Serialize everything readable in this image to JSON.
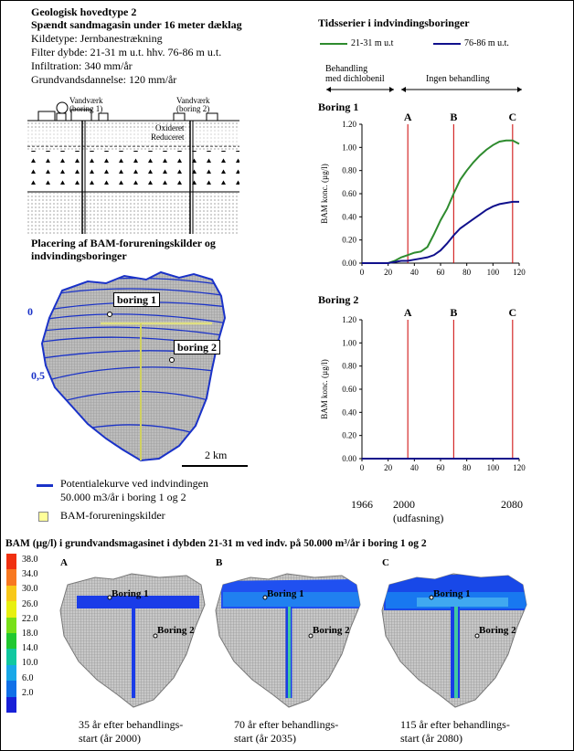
{
  "header": {
    "title_line1": "Geologisk hovedtype 2",
    "title_line2": "Spændt sandmagasin under 16 meter dæklag",
    "kildetype": "Kildetype: Jernbanestrækning",
    "filterdybde": "Filter dybde: 21-31 m u.t. hhv. 76-86 m u.t.",
    "infiltration": "Infiltration: 340 mm/år",
    "grundvandsdannelse": "Grundvandsdannelse: 120 mm/år"
  },
  "section_diagram": {
    "vandvaerk1_line1": "Vandværk",
    "vandvaerk1_line2": "(boring 1)",
    "vandvaerk2_line1": "Vandværk",
    "vandvaerk2_line2": "(boring 2)",
    "oxideret": "Oxideret",
    "reduceret": "Reduceret"
  },
  "map": {
    "title_line1": "Placering af BAM-forureningskilder og",
    "title_line2": "indvindingsboringer",
    "boring1": "boring 1",
    "boring2": "boring 2",
    "contour_0": "0",
    "contour_05": "0,5",
    "scale": "2 km",
    "legend_curve_line1": "Potentialekurve ved indvindingen",
    "legend_curve_line2": "50.000 m3/år i boring 1 og 2",
    "legend_source": "BAM-forureningskilder"
  },
  "timeseries": {
    "title": "Tidsserier i indvindingsboringer",
    "legend_green": "21-31 m u.t",
    "legend_blue": "76-86 m u.t.",
    "phase1_line1": "Behandling",
    "phase1_line2": "med dichlobenil",
    "phase2": "Ingen behandling",
    "timeline_1966": "1966",
    "timeline_2000": "2000",
    "timeline_2080": "2080",
    "timeline_note": "(udfasning)",
    "colors": {
      "green": "#2e8b2e",
      "blue": "#10108c",
      "marker": "#cc0000"
    }
  },
  "chart_data": [
    {
      "type": "line",
      "title": "Boring 1",
      "xlabel": "",
      "ylabel": "BAM konc. (µg/l)",
      "xlim": [
        0,
        120
      ],
      "ylim": [
        0,
        1.2
      ],
      "xticks": [
        0,
        20,
        40,
        60,
        80,
        100,
        120
      ],
      "yticks": [
        "0.00",
        "0.20",
        "0.40",
        "0.60",
        "0.80",
        "1.00",
        "1.20"
      ],
      "markers": [
        {
          "label": "A",
          "x": 35
        },
        {
          "label": "B",
          "x": 70
        },
        {
          "label": "C",
          "x": 115
        }
      ],
      "series": [
        {
          "name": "21-31 m u.t",
          "color": "#2e8b2e",
          "x": [
            0,
            20,
            25,
            30,
            35,
            40,
            45,
            50,
            55,
            60,
            65,
            70,
            75,
            80,
            85,
            90,
            95,
            100,
            105,
            110,
            115,
            120
          ],
          "y": [
            0,
            0,
            0.02,
            0.05,
            0.07,
            0.09,
            0.1,
            0.14,
            0.25,
            0.37,
            0.47,
            0.6,
            0.72,
            0.8,
            0.87,
            0.93,
            0.98,
            1.02,
            1.05,
            1.06,
            1.06,
            1.03
          ]
        },
        {
          "name": "76-86 m u.t.",
          "color": "#10108c",
          "x": [
            0,
            20,
            25,
            30,
            35,
            40,
            45,
            50,
            55,
            60,
            65,
            70,
            75,
            80,
            85,
            90,
            95,
            100,
            105,
            110,
            115,
            120
          ],
          "y": [
            0,
            0,
            0.01,
            0.02,
            0.02,
            0.03,
            0.04,
            0.05,
            0.07,
            0.11,
            0.17,
            0.24,
            0.3,
            0.34,
            0.38,
            0.42,
            0.46,
            0.49,
            0.51,
            0.52,
            0.53,
            0.53
          ]
        }
      ]
    },
    {
      "type": "line",
      "title": "Boring 2",
      "xlabel": "",
      "ylabel": "BAM konc. (µg/l)",
      "xlim": [
        0,
        120
      ],
      "ylim": [
        0,
        1.2
      ],
      "xticks": [
        0,
        20,
        40,
        60,
        80,
        100,
        120
      ],
      "yticks": [
        "0.00",
        "0.20",
        "0.40",
        "0.60",
        "0.80",
        "1.00",
        "1.20"
      ],
      "markers": [
        {
          "label": "A",
          "x": 35
        },
        {
          "label": "B",
          "x": 70
        },
        {
          "label": "C",
          "x": 115
        }
      ],
      "series": [
        {
          "name": "21-31 m u.t",
          "color": "#2e8b2e",
          "x": [
            0,
            120
          ],
          "y": [
            0,
            0
          ]
        },
        {
          "name": "76-86 m u.t.",
          "color": "#10108c",
          "x": [
            0,
            120
          ],
          "y": [
            0,
            0
          ]
        }
      ]
    }
  ],
  "bottom": {
    "title": "BAM (µg/l) i grundvandsmagasinet i dybden 21-31 m ved indv. på 50.000 m³/år i boring 1 og 2",
    "colorbar": [
      {
        "value": "38.0",
        "color": "#f03010"
      },
      {
        "value": "34.0",
        "color": "#f87820"
      },
      {
        "value": "30.0",
        "color": "#f8c818"
      },
      {
        "value": "26.0",
        "color": "#e8f010"
      },
      {
        "value": "22.0",
        "color": "#78e018"
      },
      {
        "value": "18.0",
        "color": "#20c830"
      },
      {
        "value": "14.0",
        "color": "#10c8a0"
      },
      {
        "value": "10.0",
        "color": "#18a8e8"
      },
      {
        "value": "6.0",
        "color": "#1070e8"
      },
      {
        "value": "2.0",
        "color": "#1820d8"
      }
    ],
    "panels": [
      {
        "letter": "A",
        "b1": "Boring 1",
        "b2": "Boring 2",
        "cap1": "35 år efter behandlings-",
        "cap2": "start (år 2000)"
      },
      {
        "letter": "B",
        "b1": "Boring 1",
        "b2": "Boring 2",
        "cap1": "70 år efter behandlings-",
        "cap2": "start (år 2035)"
      },
      {
        "letter": "C",
        "b1": "Boring 1",
        "b2": "Boring 2",
        "cap1": "115 år efter behandlings-",
        "cap2": "start (år 2080)"
      }
    ]
  }
}
